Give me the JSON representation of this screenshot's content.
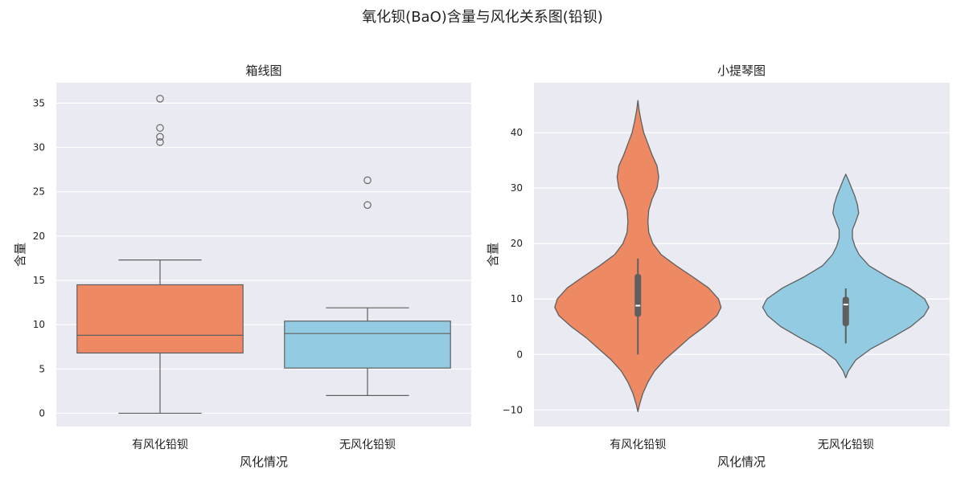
{
  "figure": {
    "title": "氧化钡(BaO)含量与风化关系图(铅钡)"
  },
  "chart_data": [
    {
      "type": "box",
      "title": "箱线图",
      "xlabel": "风化情况",
      "ylabel": "含量",
      "categories": [
        "有风化铅钡",
        "无风化铅钡"
      ],
      "colors": [
        "#ee8a63",
        "#93cce2"
      ],
      "ylim": [
        -1.5,
        37.3
      ],
      "yticks": [
        0,
        5,
        10,
        15,
        20,
        25,
        30,
        35
      ],
      "grid": true,
      "boxes": [
        {
          "whisker_low": 0.0,
          "q1": 6.8,
          "median": 8.8,
          "q3": 14.5,
          "whisker_high": 17.3,
          "outliers": [
            30.6,
            31.2,
            32.2,
            35.5
          ]
        },
        {
          "whisker_low": 2.0,
          "q1": 5.1,
          "median": 9.0,
          "q3": 10.4,
          "whisker_high": 11.9,
          "outliers": [
            23.5,
            26.3
          ]
        }
      ]
    },
    {
      "type": "violin",
      "title": "小提琴图",
      "xlabel": "风化情况",
      "ylabel": "含量",
      "categories": [
        "有风化铅钡",
        "无风化铅钡"
      ],
      "colors": [
        "#ee8a63",
        "#93cce2"
      ],
      "ylim": [
        -13,
        49
      ],
      "yticks": [
        -10,
        0,
        10,
        20,
        30,
        40
      ],
      "grid": true,
      "violins": [
        {
          "min": -10.3,
          "max": 45.8,
          "whisker_low": 0.0,
          "q1": 6.8,
          "median": 8.8,
          "q3": 14.5,
          "whisker_high": 17.3,
          "density": [
            [
              -10.3,
              0.0
            ],
            [
              -9,
              0.02
            ],
            [
              -7,
              0.06
            ],
            [
              -5,
              0.12
            ],
            [
              -3,
              0.2
            ],
            [
              -1,
              0.32
            ],
            [
              1,
              0.47
            ],
            [
              3,
              0.62
            ],
            [
              5,
              0.8
            ],
            [
              7,
              0.95
            ],
            [
              8.5,
              1.0
            ],
            [
              10,
              0.97
            ],
            [
              12,
              0.85
            ],
            [
              14,
              0.66
            ],
            [
              16,
              0.46
            ],
            [
              18,
              0.28
            ],
            [
              20,
              0.18
            ],
            [
              22,
              0.13
            ],
            [
              24,
              0.12
            ],
            [
              26,
              0.13
            ],
            [
              28,
              0.17
            ],
            [
              30,
              0.23
            ],
            [
              32,
              0.25
            ],
            [
              34,
              0.23
            ],
            [
              36,
              0.17
            ],
            [
              38,
              0.12
            ],
            [
              40,
              0.07
            ],
            [
              42,
              0.04
            ],
            [
              44,
              0.015
            ],
            [
              45.8,
              0.0
            ]
          ]
        },
        {
          "min": -4.2,
          "max": 32.5,
          "whisker_low": 2.0,
          "q1": 5.1,
          "median": 9.0,
          "q3": 10.4,
          "whisker_high": 11.9,
          "density": [
            [
              -4.2,
              0.0
            ],
            [
              -3,
              0.03
            ],
            [
              -1,
              0.12
            ],
            [
              1,
              0.3
            ],
            [
              3,
              0.55
            ],
            [
              5,
              0.78
            ],
            [
              7,
              0.94
            ],
            [
              8.5,
              1.0
            ],
            [
              10,
              0.95
            ],
            [
              12,
              0.76
            ],
            [
              14,
              0.5
            ],
            [
              16,
              0.28
            ],
            [
              18,
              0.16
            ],
            [
              19.5,
              0.11
            ],
            [
              21,
              0.08
            ],
            [
              22.5,
              0.08
            ],
            [
              24,
              0.12
            ],
            [
              25.5,
              0.155
            ],
            [
              27,
              0.14
            ],
            [
              28.5,
              0.11
            ],
            [
              30,
              0.07
            ],
            [
              31.5,
              0.03
            ],
            [
              32.5,
              0.0
            ]
          ]
        }
      ]
    }
  ]
}
